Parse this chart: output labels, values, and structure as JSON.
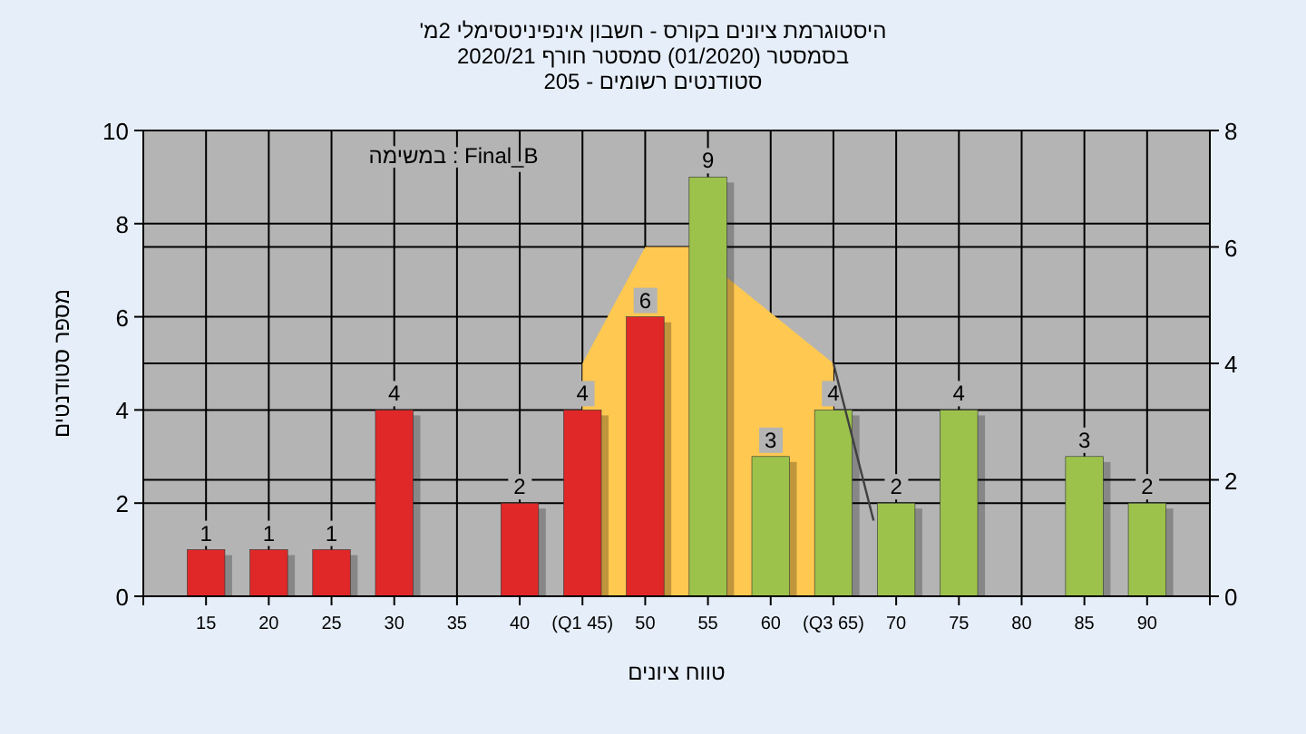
{
  "chart_data": {
    "type": "bar",
    "title": "היסטוגרמת ציונים בקורס - חשבון אינפיניטסימלי 2מ'",
    "subtitle": "בסמסטר (01/2020) סמסטר חורף 2020/21",
    "annotations": [
      "סטודנטים רשומים - 205",
      "במשימה : Final_B"
    ],
    "xlabel": "טווח ציונים",
    "ylabel": "מספר סטודנטים",
    "xlim": [
      10,
      95
    ],
    "xticks": [
      15,
      20,
      25,
      30,
      35,
      40,
      {
        "value": 45,
        "label": "(Q1 45)"
      },
      50,
      55,
      60,
      {
        "value": 65,
        "label": "(Q3 65)"
      },
      70,
      75,
      80,
      85,
      90
    ],
    "ylim": [
      0,
      10
    ],
    "yticks": [
      0,
      2,
      4,
      6,
      8,
      10
    ],
    "y2lim": [
      0,
      8
    ],
    "y2ticks": [
      0,
      2,
      4,
      6,
      8
    ],
    "grid": true,
    "series": [
      {
        "type": "area",
        "axis": "y2",
        "color": "#ffc850",
        "x": [
          45,
          50,
          53.5,
          65
        ],
        "values": [
          4,
          6,
          6,
          4
        ]
      },
      {
        "x": [
          15,
          20,
          25,
          30,
          40,
          45,
          50,
          55,
          60,
          65,
          70,
          75,
          85,
          90
        ],
        "values": [
          1,
          1,
          1,
          4,
          2,
          4,
          6,
          9,
          3,
          4,
          2,
          4,
          3,
          2
        ],
        "value_labels": [
          "1",
          "1",
          "1",
          "4",
          "2",
          "4",
          "6",
          "9",
          "3",
          "4",
          "2",
          "4",
          "3",
          "2"
        ],
        "colors": [
          "#e02828",
          "#e02828",
          "#e02828",
          "#e02828",
          "#e02828",
          "#e02828",
          "#e02828",
          "#9cc24c",
          "#9cc24c",
          "#9cc24c",
          "#9cc24c",
          "#9cc24c",
          "#9cc24c",
          "#9cc24c"
        ]
      },
      {
        "type": "line",
        "axis": "y2",
        "color": "#404040",
        "x": [
          65,
          68.2
        ],
        "values": [
          4,
          1.3
        ]
      }
    ]
  }
}
